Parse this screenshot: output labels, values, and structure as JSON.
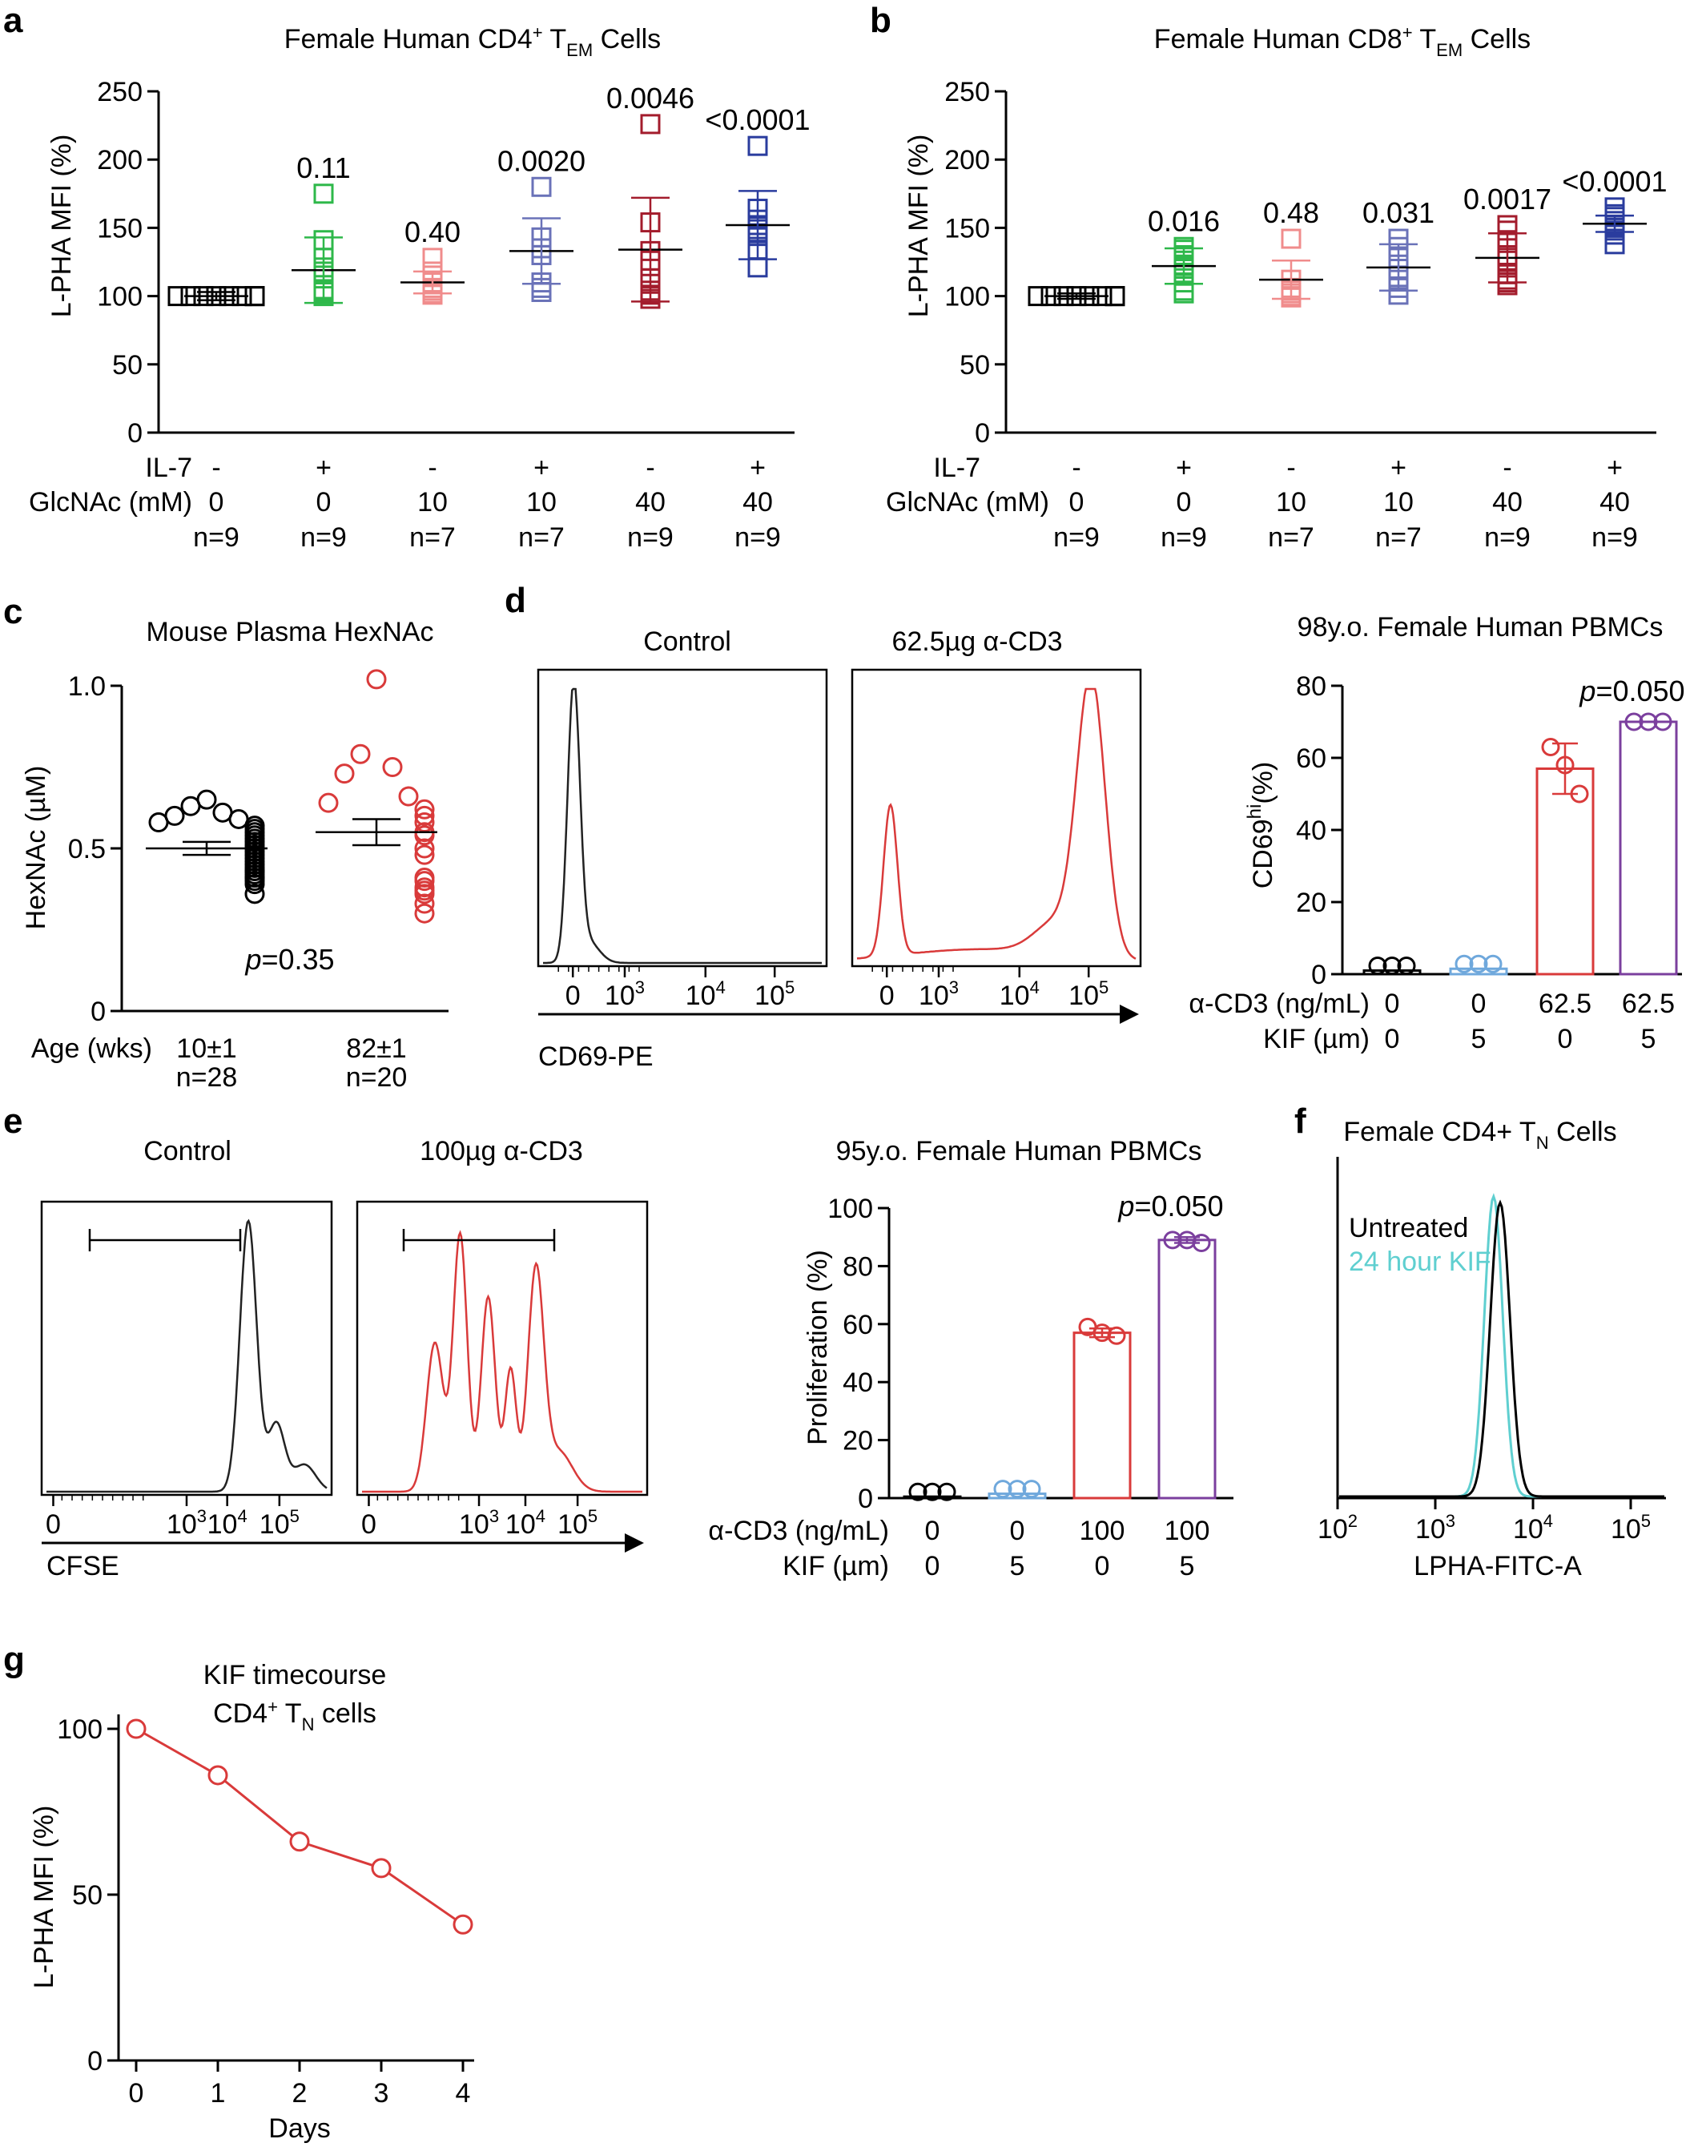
{
  "panels": {
    "a": {
      "letter": "a",
      "title_main": "Female Human CD4",
      "title_sup": "+",
      "title_T": " T",
      "title_sub": "EM",
      "title_end": " Cells",
      "ylabel": "L-PHA MFI (%)",
      "row_labels": [
        "IL-7",
        "GlcNAc (mM)"
      ]
    },
    "b": {
      "letter": "b",
      "title_main": "Female Human CD8",
      "title_sup": "+",
      "title_T": " T",
      "title_sub": "EM",
      "title_end": " Cells",
      "ylabel": "L-PHA MFI (%)",
      "row_labels": [
        "IL-7",
        "GlcNAc (mM)"
      ]
    },
    "c": {
      "letter": "c",
      "title": "Mouse Plasma HexNAc",
      "ylabel": "HexNAc (µM)",
      "row_label": "Age (wks)",
      "p_italic": "p",
      "p_value": "=0.35"
    },
    "d": {
      "letter": "d",
      "hist_titles": [
        "Control",
        "62.5µg α-CD3"
      ],
      "x_axis_label": "CD69-PE",
      "hist_ticks": [
        "0",
        "10",
        "10",
        "10"
      ],
      "hist_tick_sups": [
        "",
        "3",
        "4",
        "5"
      ],
      "bar_title": "98y.o. Female Human PBMCs",
      "bar_ylabel_main": "CD69",
      "bar_ylabel_sup": "hi",
      "bar_ylabel_end": "(%)",
      "row_labels": [
        "α-CD3 (ng/mL)",
        "KIF (µm)"
      ],
      "p_italic": "p",
      "p_value": "=0.050"
    },
    "e": {
      "letter": "e",
      "hist_titles": [
        "Control",
        "100µg α-CD3"
      ],
      "x_axis_label": "CFSE",
      "hist_ticks": [
        "0",
        "10",
        "10",
        "10"
      ],
      "hist_tick_sups": [
        "",
        "3",
        "4",
        "5"
      ],
      "bar_title": "95y.o. Female Human PBMCs",
      "bar_ylabel": "Proliferation (%)",
      "row_labels": [
        "α-CD3 (ng/mL)",
        "KIF (µm)"
      ],
      "p_italic": "p",
      "p_value": "=0.050"
    },
    "f": {
      "letter": "f",
      "title_main": "Female CD4+ T",
      "title_sub": "N",
      "title_end": " Cells",
      "legend": [
        "Untreated",
        "24 hour KIF"
      ],
      "xlabel": "LPHA-FITC-A",
      "ticks": [
        "10",
        "10",
        "10",
        "10"
      ],
      "tick_sups": [
        "2",
        "3",
        "4",
        "5"
      ]
    },
    "g": {
      "letter": "g",
      "title_line1": "KIF timecourse",
      "title_line2_main": "CD4",
      "title_line2_sup": "+",
      "title_line2_T": " T",
      "title_line2_sub": "N",
      "title_line2_end": " cells",
      "ylabel": "L-PHA MFI (%)",
      "xlabel": "Days"
    }
  },
  "colors": {
    "black": "#000000",
    "green": "#2eb84a",
    "pink": "#f08c8c",
    "lavender": "#6a72b8",
    "darkred": "#a31c2c",
    "navy": "#2a3c9e",
    "red": "#d93a3a",
    "lightblue": "#6fa8dc",
    "purple": "#7b3f9e",
    "cyan": "#5fcfd0"
  },
  "chart_data": [
    {
      "id": "a",
      "type": "scatter",
      "ylim": [
        0,
        250
      ],
      "yticks": [
        0,
        50,
        100,
        150,
        200,
        250
      ],
      "il7": [
        "-",
        "+",
        "-",
        "+",
        "-",
        "+"
      ],
      "glcnac": [
        "0",
        "0",
        "10",
        "10",
        "40",
        "40"
      ],
      "n": [
        "n=9",
        "n=9",
        "n=7",
        "n=7",
        "n=9",
        "n=9"
      ],
      "p_values": [
        "",
        "0.11",
        "0.40",
        "0.0020",
        "0.0046",
        "<0.0001"
      ],
      "colors": [
        "black",
        "green",
        "pink",
        "lavender",
        "darkred",
        "navy"
      ],
      "groups": [
        {
          "mean": 100,
          "sd": 3,
          "values": [
            100,
            100,
            100,
            100,
            100,
            100,
            100,
            100,
            100
          ]
        },
        {
          "mean": 119,
          "sd": 24,
          "values": [
            175,
            141,
            128,
            121,
            118,
            105,
            104,
            103,
            100
          ]
        },
        {
          "mean": 110,
          "sd": 8,
          "values": [
            128,
            118,
            110,
            106,
            104,
            102,
            101
          ]
        },
        {
          "mean": 133,
          "sd": 24,
          "values": [
            180,
            143,
            135,
            130,
            110,
            106,
            103
          ]
        },
        {
          "mean": 134,
          "sd": 38,
          "values": [
            226,
            154,
            133,
            126,
            113,
            109,
            104,
            101,
            98
          ]
        },
        {
          "mean": 152,
          "sd": 25,
          "values": [
            210,
            164,
            156,
            152,
            149,
            146,
            144,
            134,
            121
          ]
        }
      ]
    },
    {
      "id": "b",
      "type": "scatter",
      "ylim": [
        0,
        250
      ],
      "yticks": [
        0,
        50,
        100,
        150,
        200,
        250
      ],
      "il7": [
        "-",
        "+",
        "-",
        "+",
        "-",
        "+"
      ],
      "glcnac": [
        "0",
        "0",
        "10",
        "10",
        "40",
        "40"
      ],
      "n": [
        "n=9",
        "n=9",
        "n=7",
        "n=7",
        "n=9",
        "n=9"
      ],
      "p_values": [
        "",
        "0.016",
        "0.48",
        "0.031",
        "0.0017",
        "<0.0001"
      ],
      "colors": [
        "black",
        "green",
        "pink",
        "lavender",
        "darkred",
        "navy"
      ],
      "groups": [
        {
          "mean": 100,
          "sd": 2,
          "values": [
            100,
            100,
            100,
            100,
            100,
            100,
            100,
            100,
            100
          ]
        },
        {
          "mean": 122,
          "sd": 13,
          "values": [
            136,
            134,
            130,
            126,
            122,
            120,
            110,
            104,
            102
          ]
        },
        {
          "mean": 112,
          "sd": 14,
          "values": [
            142,
            112,
            106,
            104,
            102,
            100,
            99
          ]
        },
        {
          "mean": 121,
          "sd": 17,
          "values": [
            142,
            136,
            128,
            120,
            112,
            106,
            101
          ]
        },
        {
          "mean": 128,
          "sd": 18,
          "values": [
            152,
            148,
            141,
            130,
            126,
            116,
            112,
            110,
            108
          ]
        },
        {
          "mean": 153,
          "sd": 6,
          "values": [
            165,
            160,
            158,
            155,
            152,
            150,
            148,
            145,
            138
          ]
        }
      ]
    },
    {
      "id": "c",
      "type": "scatter",
      "ylim": [
        0,
        1.0
      ],
      "yticks": [
        "0",
        "0.5",
        "1.0"
      ],
      "categories": [
        "10±1",
        "82±1"
      ],
      "n": [
        "n=28",
        "n=20"
      ],
      "colors": [
        "black",
        "red"
      ],
      "groups": [
        {
          "mean": 0.5,
          "sem": 0.02,
          "values": [
            0.65,
            0.63,
            0.61,
            0.6,
            0.59,
            0.58,
            0.57,
            0.56,
            0.55,
            0.54,
            0.53,
            0.52,
            0.51,
            0.5,
            0.49,
            0.48,
            0.47,
            0.46,
            0.45,
            0.44,
            0.43,
            0.43,
            0.42,
            0.41,
            0.41,
            0.4,
            0.39,
            0.36
          ]
        },
        {
          "mean": 0.55,
          "sem": 0.04,
          "values": [
            1.02,
            0.79,
            0.75,
            0.73,
            0.66,
            0.64,
            0.62,
            0.6,
            0.58,
            0.55,
            0.54,
            0.5,
            0.48,
            0.41,
            0.4,
            0.38,
            0.37,
            0.36,
            0.33,
            0.3
          ]
        }
      ]
    },
    {
      "id": "d_bar",
      "type": "bar",
      "ylim": [
        0,
        80
      ],
      "yticks": [
        0,
        20,
        40,
        60,
        80
      ],
      "acd3": [
        "0",
        "0",
        "62.5",
        "62.5"
      ],
      "kif": [
        "0",
        "5",
        "0",
        "5"
      ],
      "colors": [
        "black",
        "lightblue",
        "red",
        "purple"
      ],
      "values": [
        1,
        1.5,
        57,
        70
      ],
      "sd": [
        0,
        0,
        7,
        0
      ],
      "points": [
        [
          1,
          1,
          1
        ],
        [
          1.5,
          1.5,
          1.5
        ],
        [
          63,
          58,
          50
        ],
        [
          70,
          70,
          70
        ]
      ]
    },
    {
      "id": "e_bar",
      "type": "bar",
      "ylim": [
        0,
        100
      ],
      "yticks": [
        0,
        20,
        40,
        60,
        80,
        100
      ],
      "acd3": [
        "0",
        "0",
        "100",
        "100"
      ],
      "kif": [
        "0",
        "5",
        "0",
        "5"
      ],
      "colors": [
        "black",
        "lightblue",
        "red",
        "purple"
      ],
      "values": [
        0.5,
        1.5,
        57,
        89
      ],
      "sd": [
        0,
        0,
        1.5,
        1
      ],
      "points": [
        [
          0.5,
          0.5,
          0.5
        ],
        [
          1.5,
          1.5,
          1.5
        ],
        [
          59,
          57,
          56
        ],
        [
          89,
          89,
          88
        ]
      ]
    },
    {
      "id": "g",
      "type": "line",
      "x": [
        0,
        1,
        2,
        3,
        4
      ],
      "y": [
        100,
        86,
        66,
        58,
        41
      ],
      "xlim": [
        0,
        4
      ],
      "ylim": [
        0,
        100
      ],
      "yticks": [
        0,
        50,
        100
      ]
    }
  ]
}
